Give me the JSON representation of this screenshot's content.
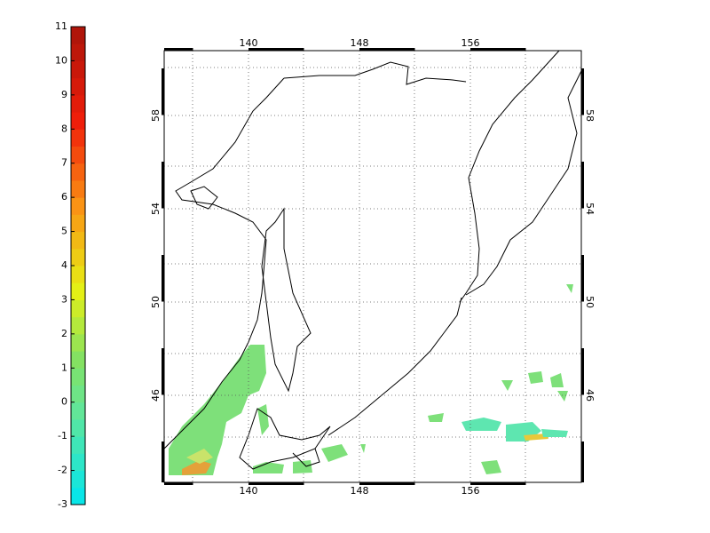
{
  "colorbar": {
    "ticks": [
      11,
      10,
      9,
      8,
      7,
      6,
      5,
      4,
      3,
      2,
      1,
      0,
      -1,
      -2,
      -3
    ]
  },
  "map": {
    "top_xticks": [
      140,
      148,
      156
    ],
    "bottom_xticks": [
      140,
      148,
      156
    ],
    "left_yticks": [
      58,
      54,
      50,
      46
    ],
    "right_yticks": [
      58,
      54,
      50,
      46
    ]
  }
}
